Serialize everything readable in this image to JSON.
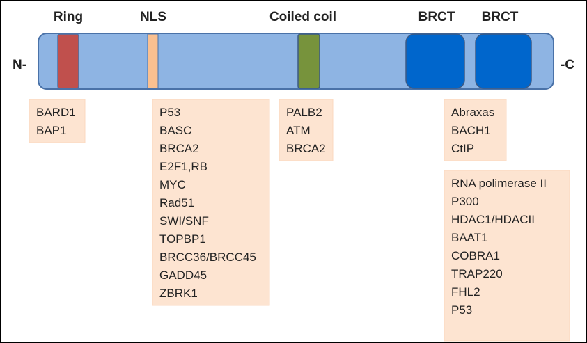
{
  "domains": [
    {
      "label": "Ring"
    },
    {
      "label": "NLS"
    },
    {
      "label": "Coiled coil"
    },
    {
      "label": "BRCT"
    },
    {
      "label": "BRCT"
    }
  ],
  "termini": {
    "n": "N-",
    "c": "-C"
  },
  "groups": [
    {
      "items": [
        "BARD1",
        "BAP1"
      ]
    },
    {
      "items": [
        "P53",
        "BASC",
        "BRCA2",
        "E2F1,RB",
        "MYC",
        "Rad51",
        "SWI/SNF",
        "TOPBP1",
        "BRCC36/BRCC45",
        "GADD45",
        "ZBRK1"
      ]
    },
    {
      "items": [
        "PALB2",
        "ATM",
        "BRCA2"
      ]
    },
    {
      "items": [
        "Abraxas",
        "BACH1",
        "CtIP"
      ]
    },
    {
      "items": [
        "RNA polimerase II",
        "P300",
        "HDAC1/HDACII",
        "BAAT1",
        "COBRA1",
        "TRAP220",
        "FHL2",
        "P53"
      ]
    }
  ]
}
